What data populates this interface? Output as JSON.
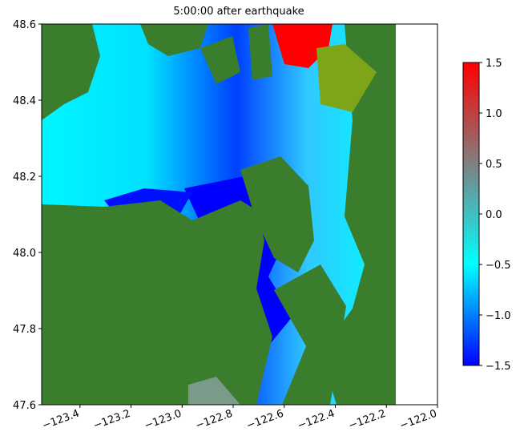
{
  "chart_data": {
    "type": "heatmap",
    "title": "5:00:00 after earthquake",
    "xlim": [
      -123.55,
      -122.0
    ],
    "xticks": [
      {
        "value": -123.4,
        "label": "−123.4"
      },
      {
        "value": -123.2,
        "label": "−123.2"
      },
      {
        "value": -123.0,
        "label": "−123.0"
      },
      {
        "value": -122.8,
        "label": "−122.8"
      },
      {
        "value": -122.6,
        "label": "−122.6"
      },
      {
        "value": -122.4,
        "label": "−122.4"
      },
      {
        "value": -122.2,
        "label": "−122.2"
      },
      {
        "value": -122.0,
        "label": "−122.0"
      }
    ],
    "ylim": [
      47.6,
      48.6
    ],
    "yticks": [
      47.6,
      47.8,
      {
        "value": 48,
        "label": "48.0"
      },
      48.2,
      48.4,
      48.6
    ],
    "clim": [
      -1.5,
      1.5
    ],
    "cticks": [
      {
        "value": -1.5,
        "label": "−1.5"
      },
      {
        "value": -1,
        "label": "−1.0"
      },
      {
        "value": -0.5,
        "label": "−0.5"
      },
      {
        "value": 0,
        "label": "0.0"
      },
      0.5,
      {
        "value": 1,
        "label": "1.0"
      },
      1.5
    ],
    "colormap": [
      "#0000ff",
      "#00ffff",
      "#808080",
      "#ff0000"
    ]
  }
}
